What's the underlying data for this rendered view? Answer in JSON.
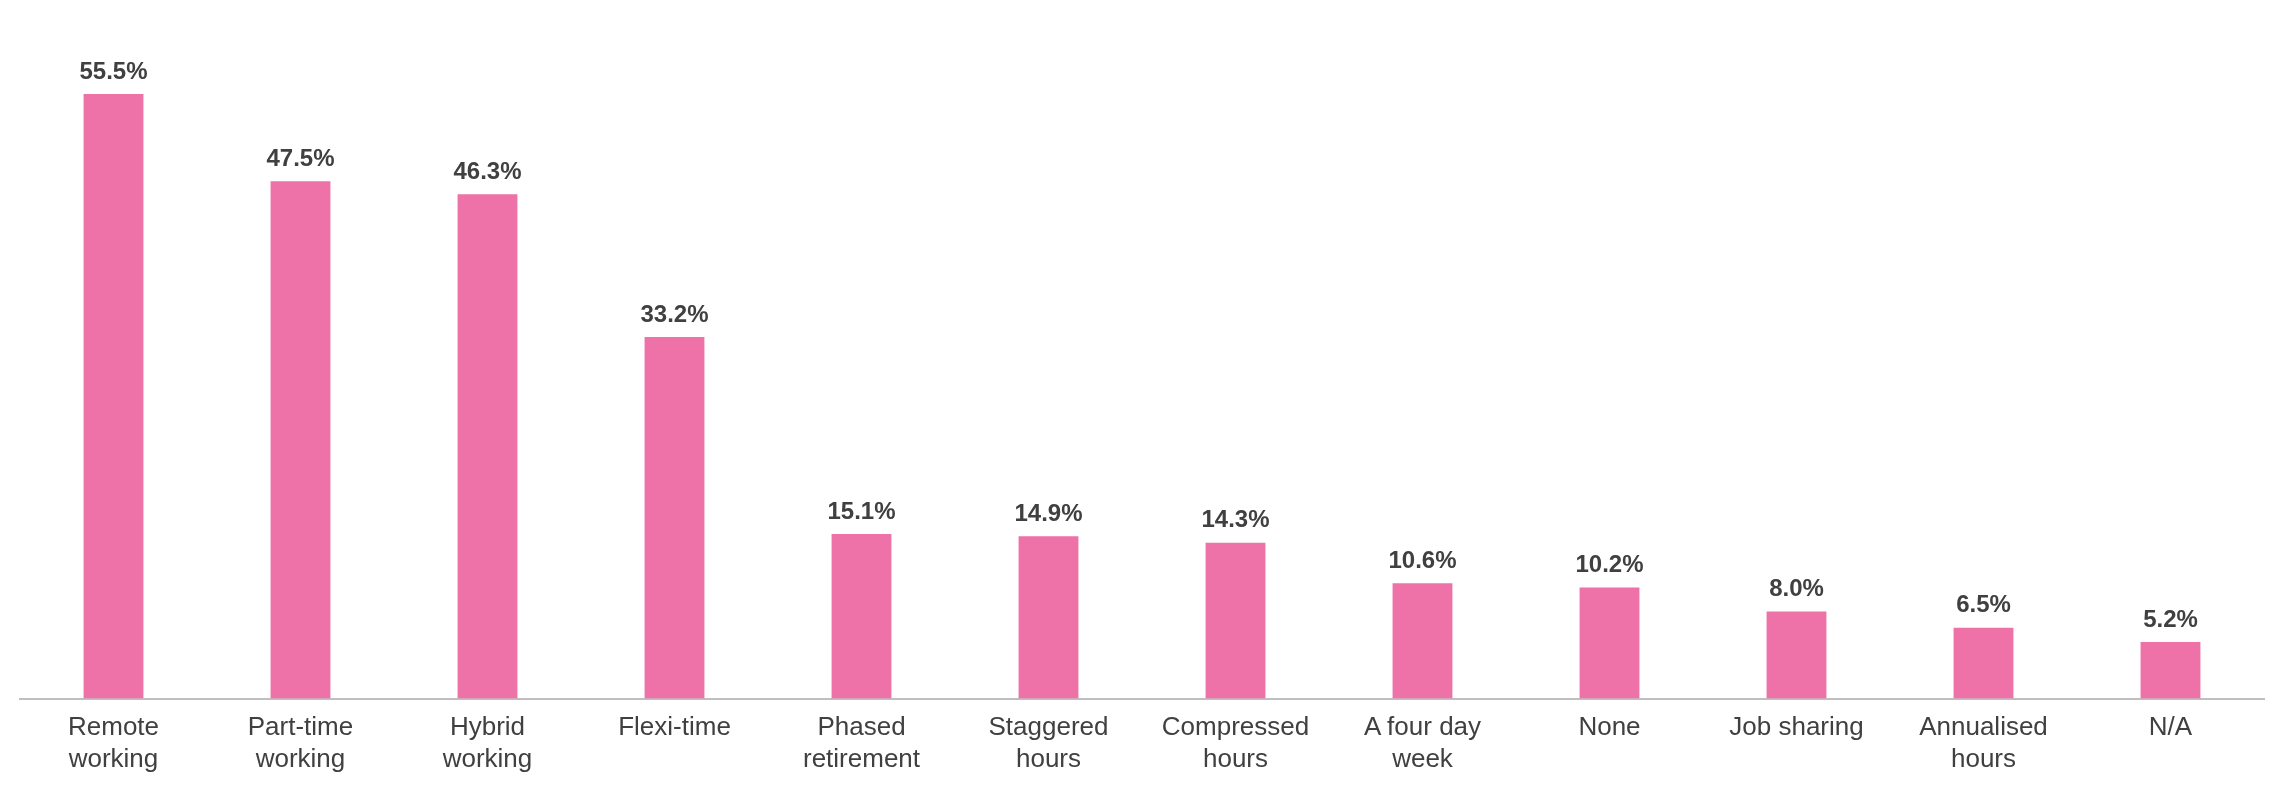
{
  "chart_data": {
    "type": "bar",
    "categories": [
      "Remote working",
      "Part-time working",
      "Hybrid working",
      "Flexi-time",
      "Phased retirement",
      "Staggered hours",
      "Compressed hours",
      "A four day week",
      "None",
      "Job sharing",
      "Annualised hours",
      "N/A"
    ],
    "values": [
      55.5,
      47.5,
      46.3,
      33.2,
      15.1,
      14.9,
      14.3,
      10.6,
      10.2,
      8.0,
      6.5,
      5.2
    ],
    "value_labels": [
      "55.5%",
      "47.5%",
      "46.3%",
      "33.2%",
      "15.1%",
      "14.9%",
      "14.3%",
      "10.6%",
      "10.2%",
      "8.0%",
      "6.5%",
      "5.2%"
    ],
    "color": "#ee72a8",
    "grid": false,
    "legend": false
  }
}
